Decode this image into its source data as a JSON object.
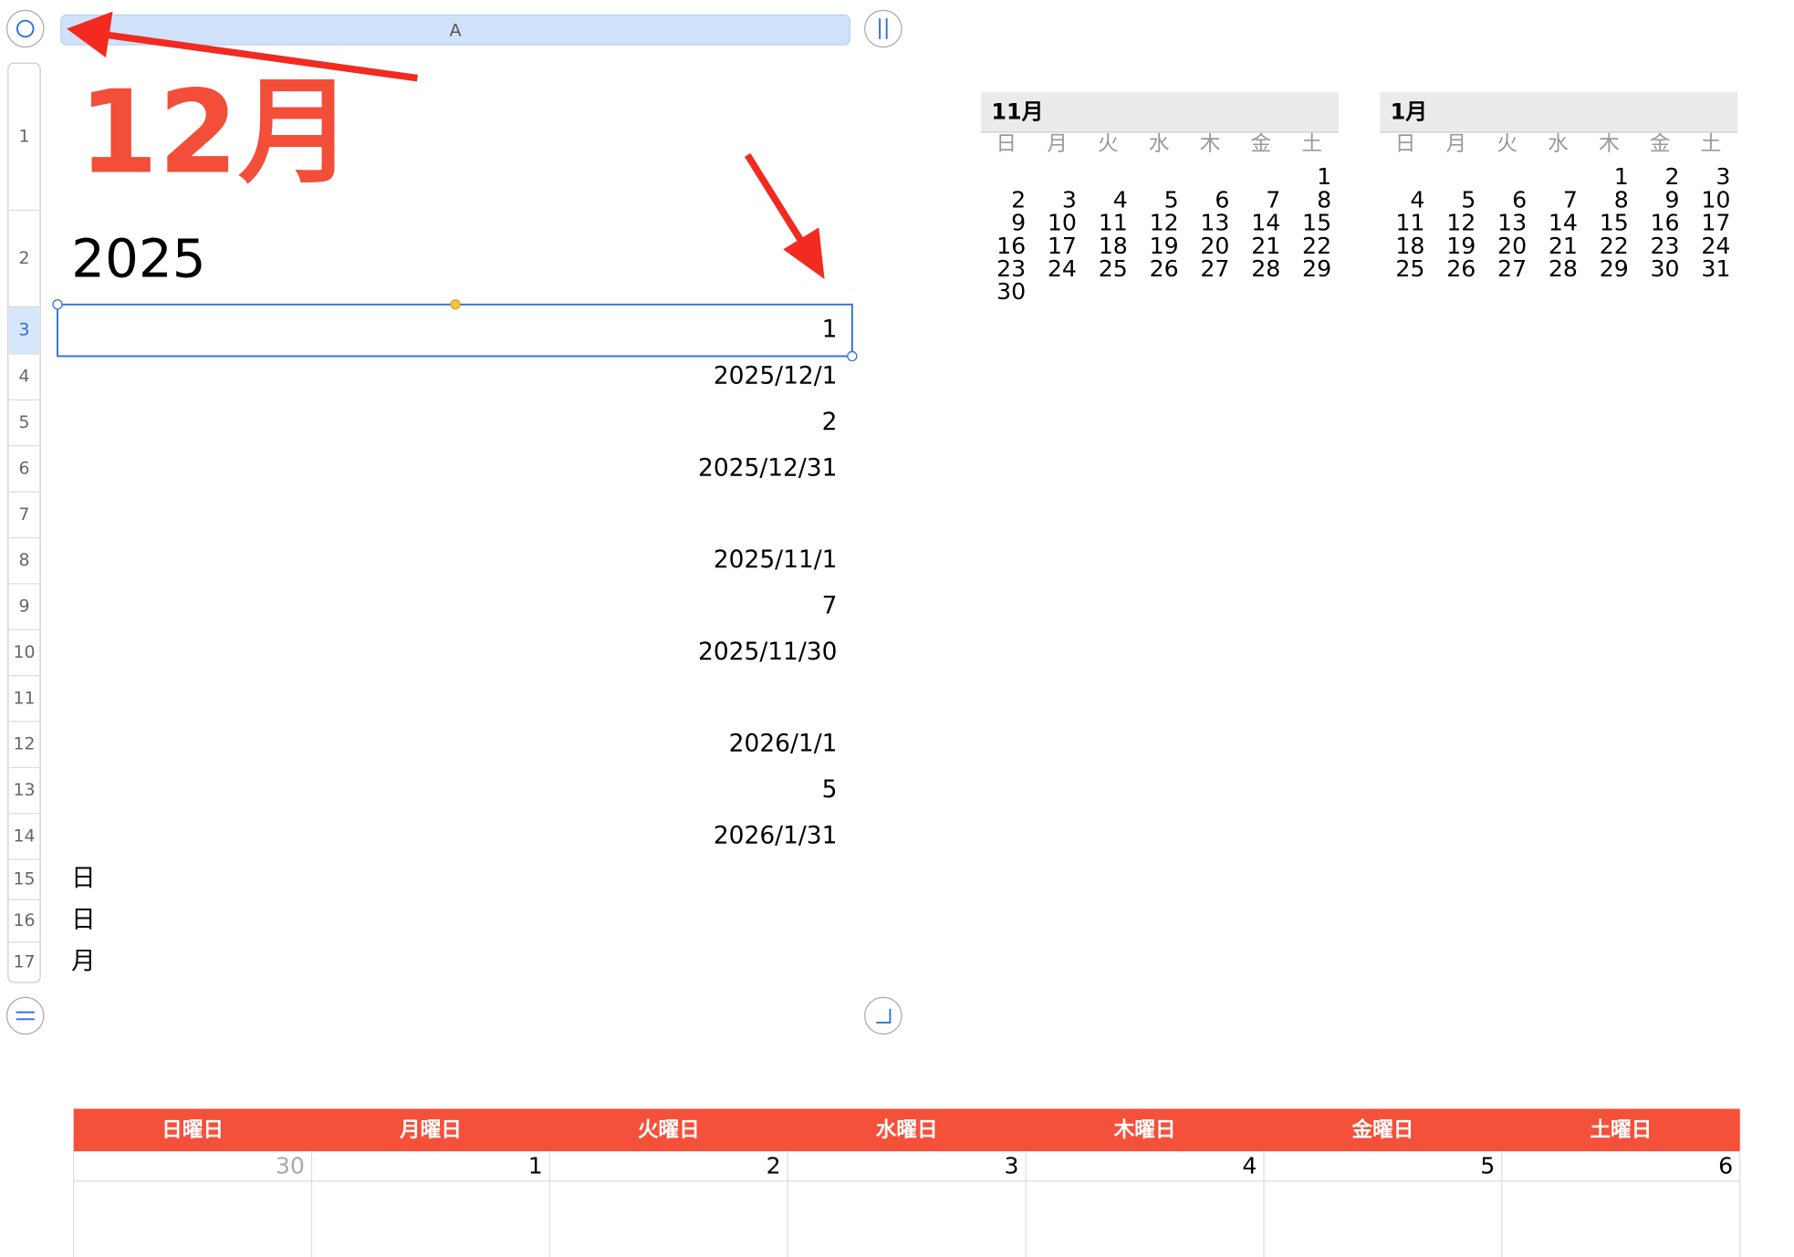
{
  "sheet": {
    "column_header": "A",
    "title": "12月",
    "year": "2025",
    "rows": [
      {
        "number": "1"
      },
      {
        "number": "2"
      },
      {
        "number": "3",
        "value": "1"
      },
      {
        "number": "4",
        "value": "2025/12/1"
      },
      {
        "number": "5",
        "value": "2"
      },
      {
        "number": "6",
        "value": "2025/12/31"
      },
      {
        "number": "7"
      },
      {
        "number": "8",
        "value": "2025/11/1"
      },
      {
        "number": "9",
        "value": "7"
      },
      {
        "number": "10",
        "value": "2025/11/30"
      },
      {
        "number": "11"
      },
      {
        "number": "12",
        "value": "2026/1/1"
      },
      {
        "number": "13",
        "value": "5"
      },
      {
        "number": "14",
        "value": "2026/1/31"
      },
      {
        "number": "15",
        "value": "日"
      },
      {
        "number": "16",
        "value": "日"
      },
      {
        "number": "17",
        "value": "月"
      }
    ]
  },
  "mini_calendars": [
    {
      "title": "11月",
      "weekdays": [
        "日",
        "月",
        "火",
        "水",
        "木",
        "金",
        "土"
      ],
      "weeks": [
        [
          null,
          null,
          null,
          null,
          null,
          null,
          1
        ],
        [
          2,
          3,
          4,
          5,
          6,
          7,
          8
        ],
        [
          9,
          10,
          11,
          12,
          13,
          14,
          15
        ],
        [
          16,
          17,
          18,
          19,
          20,
          21,
          22
        ],
        [
          23,
          24,
          25,
          26,
          27,
          28,
          29
        ],
        [
          30
        ]
      ]
    },
    {
      "title": "1月",
      "weekdays": [
        "日",
        "月",
        "火",
        "水",
        "木",
        "金",
        "土"
      ],
      "weeks": [
        [
          null,
          null,
          null,
          null,
          1,
          2,
          3
        ],
        [
          4,
          5,
          6,
          7,
          8,
          9,
          10
        ],
        [
          11,
          12,
          13,
          14,
          15,
          16,
          17
        ],
        [
          18,
          19,
          20,
          21,
          22,
          23,
          24
        ],
        [
          25,
          26,
          27,
          28,
          29,
          30,
          31
        ]
      ]
    }
  ],
  "calendar": {
    "weekdays": [
      "日曜日",
      "月曜日",
      "火曜日",
      "水曜日",
      "木曜日",
      "金曜日",
      "土曜日"
    ],
    "first_week": [
      30,
      1,
      2,
      3,
      4,
      5,
      6
    ]
  }
}
